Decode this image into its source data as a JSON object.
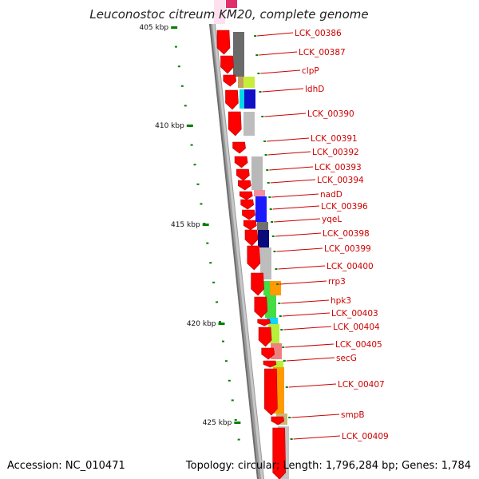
{
  "map": {
    "title": "Leuconostoc citreum KM20, complete genome",
    "accession": "Accession: NC_010471",
    "summary": "Topology: circular; Length: 1,796,284 bp; Genes: 1,784",
    "colors": {
      "gene": "#ff0000",
      "label": "#cc0000",
      "tick": "#008000",
      "backbone": "#9a9a9a"
    }
  },
  "scale_ticks": [
    {
      "label": "405 kbp"
    },
    {
      "label": "410 kbp"
    },
    {
      "label": "415 kbp"
    },
    {
      "label": "420 kbp"
    },
    {
      "label": "425 kbp"
    }
  ],
  "genes": [
    "LCK_00386",
    "LCK_00387",
    "clpP",
    "ldhD",
    "LCK_00390",
    "LCK_00391",
    "LCK_00392",
    "LCK_00393",
    "LCK_00394",
    "nadD",
    "LCK_00396",
    "yqeL",
    "LCK_00398",
    "LCK_00399",
    "LCK_00400",
    "rrp3",
    "hpk3",
    "LCK_00403",
    "LCK_00404",
    "LCK_00405",
    "secG",
    "LCK_00407",
    "smpB",
    "LCK_00409"
  ]
}
